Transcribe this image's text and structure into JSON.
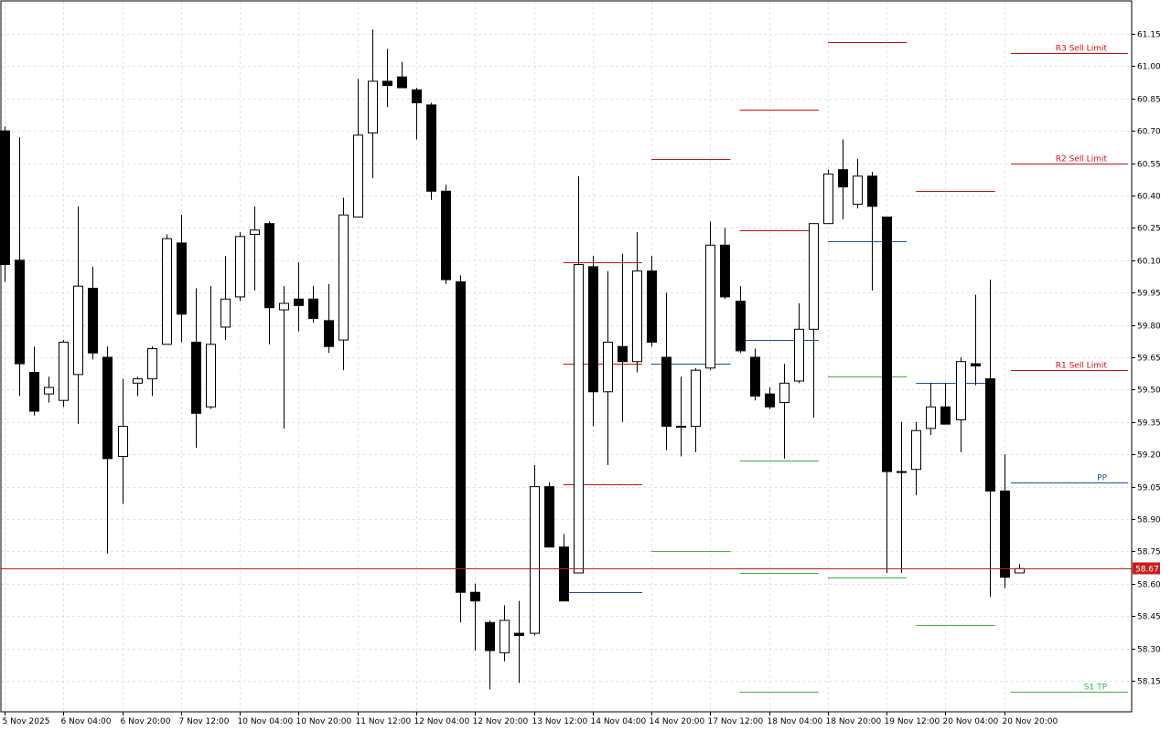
{
  "chart_data": {
    "type": "candlestick",
    "xlabel": "",
    "ylabel": "",
    "ylim": [
      58.05,
      61.22
    ],
    "y_ticks": [
      "61.15",
      "61.00",
      "60.85",
      "60.70",
      "60.55",
      "60.40",
      "60.25",
      "60.10",
      "59.95",
      "59.80",
      "59.65",
      "59.50",
      "59.35",
      "59.20",
      "59.05",
      "58.90",
      "58.75",
      "58.60",
      "58.45",
      "58.30",
      "58.15"
    ],
    "x_tick_labels": [
      {
        "label": "5 Nov 2025",
        "bar": 0
      },
      {
        "label": "6 Nov 04:00",
        "bar": 4
      },
      {
        "label": "6 Nov 20:00",
        "bar": 8
      },
      {
        "label": "7 Nov 12:00",
        "bar": 12
      },
      {
        "label": "10 Nov 04:00",
        "bar": 16
      },
      {
        "label": "10 Nov 20:00",
        "bar": 20
      },
      {
        "label": "11 Nov 12:00",
        "bar": 24
      },
      {
        "label": "12 Nov 04:00",
        "bar": 28
      },
      {
        "label": "12 Nov 20:00",
        "bar": 32
      },
      {
        "label": "13 Nov 12:00",
        "bar": 36
      },
      {
        "label": "14 Nov 04:00",
        "bar": 40
      },
      {
        "label": "14 Nov 20:00",
        "bar": 44
      },
      {
        "label": "17 Nov 12:00",
        "bar": 48
      },
      {
        "label": "18 Nov 04:00",
        "bar": 52
      },
      {
        "label": "18 Nov 20:00",
        "bar": 56
      },
      {
        "label": "19 Nov 12:00",
        "bar": 60
      },
      {
        "label": "20 Nov 04:00",
        "bar": 64
      },
      {
        "label": "20 Nov 20:00",
        "bar": 68
      }
    ],
    "current_price": {
      "label": "58.67",
      "value": 58.67
    },
    "ohlc": [
      [
        60.7,
        60.72,
        60.0,
        60.08
      ],
      [
        60.1,
        60.67,
        59.47,
        59.62
      ],
      [
        59.58,
        59.7,
        59.38,
        59.4
      ],
      [
        59.48,
        59.56,
        59.44,
        59.51
      ],
      [
        59.45,
        59.73,
        59.42,
        59.72
      ],
      [
        59.57,
        60.35,
        59.34,
        59.98
      ],
      [
        59.97,
        60.07,
        59.64,
        59.67
      ],
      [
        59.65,
        59.7,
        58.74,
        59.18
      ],
      [
        59.19,
        59.55,
        58.97,
        59.33
      ],
      [
        59.53,
        59.56,
        59.47,
        59.55
      ],
      [
        59.55,
        59.7,
        59.47,
        59.69
      ],
      [
        59.71,
        60.22,
        59.71,
        60.2
      ],
      [
        60.18,
        60.31,
        59.72,
        59.85
      ],
      [
        59.72,
        59.97,
        59.23,
        59.39
      ],
      [
        59.42,
        59.98,
        59.41,
        59.71
      ],
      [
        59.79,
        60.12,
        59.73,
        59.92
      ],
      [
        59.93,
        60.23,
        59.91,
        60.21
      ],
      [
        60.22,
        60.35,
        59.96,
        60.24
      ],
      [
        60.27,
        60.28,
        59.71,
        59.88
      ],
      [
        59.87,
        59.98,
        59.32,
        59.9
      ],
      [
        59.92,
        60.09,
        59.77,
        59.89
      ],
      [
        59.92,
        59.98,
        59.81,
        59.83
      ],
      [
        59.82,
        59.99,
        59.67,
        59.7
      ],
      [
        59.73,
        60.39,
        59.59,
        60.31
      ],
      [
        60.3,
        60.94,
        60.3,
        60.68
      ],
      [
        60.69,
        61.17,
        60.48,
        60.93
      ],
      [
        60.93,
        61.08,
        60.81,
        60.91
      ],
      [
        60.95,
        61.02,
        60.92,
        60.9
      ],
      [
        60.89,
        60.9,
        60.66,
        60.83
      ],
      [
        60.82,
        60.83,
        60.38,
        60.42
      ],
      [
        60.42,
        60.45,
        59.99,
        60.01
      ],
      [
        60.0,
        60.03,
        58.42,
        58.56
      ],
      [
        58.56,
        58.6,
        58.29,
        58.52
      ],
      [
        58.42,
        58.43,
        58.11,
        58.29
      ],
      [
        58.28,
        58.5,
        58.24,
        58.43
      ],
      [
        58.37,
        58.52,
        58.14,
        58.36
      ],
      [
        58.37,
        59.15,
        58.36,
        59.05
      ],
      [
        59.05,
        59.07,
        58.78,
        58.77
      ],
      [
        58.77,
        58.83,
        58.52,
        58.52
      ],
      [
        58.65,
        60.49,
        58.65,
        60.08
      ],
      [
        60.07,
        60.12,
        59.33,
        59.49
      ],
      [
        59.49,
        60.05,
        59.15,
        59.72
      ],
      [
        59.7,
        60.13,
        59.35,
        59.63
      ],
      [
        59.63,
        60.23,
        59.58,
        60.05
      ],
      [
        60.05,
        60.12,
        59.7,
        59.72
      ],
      [
        59.65,
        59.95,
        59.22,
        59.33
      ],
      [
        59.33,
        59.56,
        59.19,
        59.33
      ],
      [
        59.33,
        59.6,
        59.21,
        59.59
      ],
      [
        59.6,
        60.28,
        59.59,
        60.17
      ],
      [
        60.17,
        60.25,
        59.92,
        59.93
      ],
      [
        59.91,
        59.98,
        59.67,
        59.68
      ],
      [
        59.65,
        59.69,
        59.45,
        59.47
      ],
      [
        59.48,
        59.51,
        59.41,
        59.42
      ],
      [
        59.44,
        59.62,
        59.18,
        59.53
      ],
      [
        59.54,
        59.9,
        59.53,
        59.78
      ],
      [
        59.78,
        60.26,
        59.37,
        60.27
      ],
      [
        60.27,
        60.52,
        60.27,
        60.5
      ],
      [
        60.52,
        60.66,
        60.29,
        60.44
      ],
      [
        60.36,
        60.57,
        60.34,
        60.49
      ],
      [
        60.49,
        60.51,
        59.96,
        60.35
      ],
      [
        60.3,
        60.3,
        58.65,
        59.12
      ],
      [
        59.12,
        59.35,
        58.65,
        59.12
      ],
      [
        59.13,
        59.35,
        59.01,
        59.31
      ],
      [
        59.32,
        59.53,
        59.29,
        59.42
      ],
      [
        59.42,
        59.53,
        59.35,
        59.34
      ],
      [
        59.36,
        59.65,
        59.21,
        59.63
      ],
      [
        59.62,
        59.94,
        59.52,
        59.61
      ],
      [
        59.55,
        60.01,
        58.54,
        59.03
      ],
      [
        59.03,
        59.2,
        58.58,
        58.63
      ],
      [
        58.65,
        58.69,
        58.65,
        58.67
      ]
    ],
    "levels": [
      {
        "bar_start": 56,
        "bar_end": 61,
        "value": 61.11,
        "color": "#d11010"
      },
      {
        "bar_start": 50,
        "bar_end": 55,
        "value": 60.8,
        "color": "#d11010"
      },
      {
        "bar_start": 44,
        "bar_end": 49,
        "value": 60.57,
        "color": "#d11010"
      },
      {
        "bar_start": 50,
        "bar_end": 55,
        "value": 60.24,
        "color": "#d11010"
      },
      {
        "bar_start": 38,
        "bar_end": 43,
        "value": 60.09,
        "color": "#d11010"
      },
      {
        "bar_start": 38,
        "bar_end": 43,
        "value": 59.62,
        "color": "#d11010"
      },
      {
        "bar_start": 38,
        "bar_end": 43,
        "value": 59.06,
        "color": "#d11010"
      },
      {
        "bar_start": 38,
        "bar_end": 43,
        "value": 58.56,
        "color": "#1f4e9a"
      },
      {
        "bar_start": 44,
        "bar_end": 49,
        "value": 59.62,
        "color": "#1f4e9a"
      },
      {
        "bar_start": 50,
        "bar_end": 55,
        "value": 59.73,
        "color": "#1f4e9a"
      },
      {
        "bar_start": 56,
        "bar_end": 61,
        "value": 60.19,
        "color": "#1f4e9a"
      },
      {
        "bar_start": 62,
        "bar_end": 67,
        "value": 60.42,
        "color": "#d11010"
      },
      {
        "bar_start": 62,
        "bar_end": 67,
        "value": 59.53,
        "color": "#1f4e9a"
      },
      {
        "bar_start": 44,
        "bar_end": 49,
        "value": 58.75,
        "color": "#3cb43c"
      },
      {
        "bar_start": 50,
        "bar_end": 55,
        "value": 59.17,
        "color": "#3cb43c"
      },
      {
        "bar_start": 50,
        "bar_end": 55,
        "value": 58.65,
        "color": "#3cb43c"
      },
      {
        "bar_start": 56,
        "bar_end": 61,
        "value": 59.56,
        "color": "#3cb43c"
      },
      {
        "bar_start": 56,
        "bar_end": 61,
        "value": 58.63,
        "color": "#3cb43c"
      },
      {
        "bar_start": 62,
        "bar_end": 67,
        "value": 58.41,
        "color": "#3cb43c"
      },
      {
        "bar_start": 50,
        "bar_end": 55,
        "value": 58.1,
        "color": "#3cb43c"
      }
    ],
    "labeled_levels": [
      {
        "label": "R3 Sell Limit",
        "value": 61.06,
        "color": "#d11010"
      },
      {
        "label": "R2 Sell Limit",
        "value": 60.55,
        "color": "#d11010"
      },
      {
        "label": "R1 Sell Limit",
        "value": 59.59,
        "color": "#d11010"
      },
      {
        "label": "PP",
        "value": 59.07,
        "color": "#1f4e9a"
      },
      {
        "label": "S1 TP",
        "value": 58.1,
        "color": "#3cb43c"
      }
    ],
    "colors": {
      "background": "#ffffff",
      "grid": "#e3e3e3",
      "bull_fill": "#ffffff",
      "bear_fill": "#000000",
      "candle_outline": "#000000",
      "current_price_line": "#c81e1e",
      "current_price_badge": "#c81e1e"
    }
  }
}
